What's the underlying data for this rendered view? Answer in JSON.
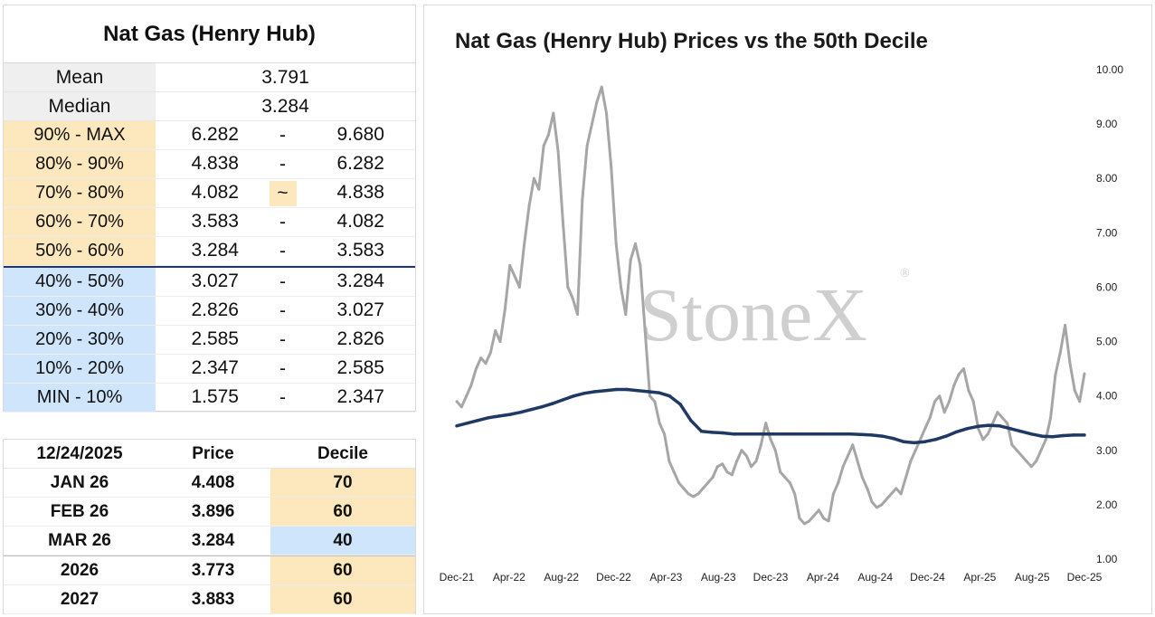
{
  "stats_panel": {
    "title": "Nat Gas (Henry Hub)",
    "mean_label": "Mean",
    "mean_value": "3.791",
    "median_label": "Median",
    "median_value": "3.284",
    "deciles": [
      {
        "label": "90% - MAX",
        "low": "6.282",
        "sep": "-",
        "high": "9.680",
        "zone": "hi"
      },
      {
        "label": "80% - 90%",
        "low": "4.838",
        "sep": "-",
        "high": "6.282",
        "zone": "hi"
      },
      {
        "label": "70% - 80%",
        "low": "4.082",
        "sep": "~",
        "high": "4.838",
        "zone": "hi"
      },
      {
        "label": "60% - 70%",
        "low": "3.583",
        "sep": "-",
        "high": "4.082",
        "zone": "hi"
      },
      {
        "label": "50% - 60%",
        "low": "3.284",
        "sep": "-",
        "high": "3.583",
        "zone": "hi"
      },
      {
        "label": "40% - 50%",
        "low": "3.027",
        "sep": "-",
        "high": "3.284",
        "zone": "lo"
      },
      {
        "label": "30% - 40%",
        "low": "2.826",
        "sep": "-",
        "high": "3.027",
        "zone": "lo"
      },
      {
        "label": "20% - 30%",
        "low": "2.585",
        "sep": "-",
        "high": "2.826",
        "zone": "lo"
      },
      {
        "label": "10% - 20%",
        "low": "2.347",
        "sep": "-",
        "high": "2.585",
        "zone": "lo"
      },
      {
        "label": "MIN - 10%",
        "low": "1.575",
        "sep": "-",
        "high": "2.347",
        "zone": "lo"
      }
    ]
  },
  "summary_table": {
    "date": "12/24/2025",
    "price_header": "Price",
    "decile_header": "Decile",
    "rows": [
      {
        "contract": "JAN 26",
        "price": "4.408",
        "decile": "70",
        "zone": "hi"
      },
      {
        "contract": "FEB 26",
        "price": "3.896",
        "decile": "60",
        "zone": "hi"
      },
      {
        "contract": "MAR 26",
        "price": "3.284",
        "decile": "40",
        "zone": "lo"
      },
      {
        "contract": "2026",
        "price": "3.773",
        "decile": "60",
        "zone": "hi"
      },
      {
        "contract": "2027",
        "price": "3.883",
        "decile": "60",
        "zone": "hi"
      }
    ]
  },
  "colors": {
    "above_median": "#fde7bd",
    "below_median": "#cfe5fb",
    "price_series": "#a6a6a6",
    "decile_series": "#1f3864",
    "watermark": "#cfcfcf"
  },
  "chart_data": {
    "type": "line",
    "title": "Nat Gas (Henry Hub) Prices vs the 50th Decile",
    "watermark": "StoneX",
    "watermark_mark": "®",
    "x_ticks": [
      "Dec-21",
      "Apr-22",
      "Aug-22",
      "Dec-22",
      "Apr-23",
      "Aug-23",
      "Dec-23",
      "Apr-24",
      "Aug-24",
      "Dec-24",
      "Apr-25",
      "Aug-25",
      "Dec-25"
    ],
    "y_ticks": [
      "1.00",
      "2.00",
      "3.00",
      "4.00",
      "5.00",
      "6.00",
      "7.00",
      "8.00",
      "9.00",
      "10.00"
    ],
    "ylim": [
      1,
      10
    ],
    "y_axis_side": "right",
    "grid": false,
    "legend": "none",
    "series": [
      {
        "role": "price",
        "values": [
          3.9,
          3.8,
          4.0,
          4.2,
          4.5,
          4.7,
          4.6,
          4.8,
          5.2,
          5.0,
          5.6,
          6.4,
          6.2,
          6.0,
          6.8,
          7.5,
          8.0,
          7.8,
          8.6,
          8.8,
          9.2,
          8.5,
          7.2,
          6.0,
          5.8,
          5.5,
          7.6,
          8.6,
          9.0,
          9.4,
          9.68,
          9.2,
          8.2,
          6.8,
          6.0,
          5.5,
          6.5,
          6.8,
          6.4,
          5.2,
          4.0,
          3.9,
          3.5,
          3.3,
          2.8,
          2.6,
          2.4,
          2.3,
          2.2,
          2.15,
          2.2,
          2.3,
          2.4,
          2.5,
          2.7,
          2.75,
          2.6,
          2.55,
          2.8,
          3.0,
          2.9,
          2.7,
          2.8,
          3.1,
          3.5,
          3.2,
          3.0,
          2.6,
          2.5,
          2.4,
          2.2,
          1.75,
          1.65,
          1.7,
          1.8,
          1.9,
          1.75,
          1.7,
          2.2,
          2.4,
          2.7,
          2.9,
          3.1,
          2.8,
          2.5,
          2.3,
          2.05,
          1.95,
          2.0,
          2.1,
          2.2,
          2.3,
          2.2,
          2.5,
          2.8,
          3.0,
          3.2,
          3.4,
          3.6,
          3.9,
          4.0,
          3.7,
          3.9,
          4.2,
          4.4,
          4.5,
          4.1,
          3.9,
          3.4,
          3.2,
          3.3,
          3.5,
          3.7,
          3.6,
          3.5,
          3.1,
          3.0,
          2.9,
          2.8,
          2.7,
          2.8,
          3.0,
          3.2,
          3.6,
          4.4,
          4.8,
          5.3,
          4.6,
          4.1,
          3.9,
          4.41
        ]
      },
      {
        "role": "50th-decile",
        "values": [
          3.45,
          3.5,
          3.55,
          3.6,
          3.63,
          3.66,
          3.7,
          3.75,
          3.8,
          3.86,
          3.93,
          4.0,
          4.05,
          4.08,
          4.1,
          4.12,
          4.12,
          4.1,
          4.08,
          4.06,
          4.0,
          3.85,
          3.55,
          3.35,
          3.33,
          3.32,
          3.3,
          3.3,
          3.3,
          3.3,
          3.3,
          3.3,
          3.3,
          3.3,
          3.3,
          3.3,
          3.3,
          3.3,
          3.29,
          3.28,
          3.26,
          3.22,
          3.16,
          3.14,
          3.16,
          3.2,
          3.26,
          3.34,
          3.4,
          3.44,
          3.46,
          3.45,
          3.4,
          3.35,
          3.3,
          3.26,
          3.25,
          3.27,
          3.28,
          3.28
        ]
      }
    ]
  }
}
